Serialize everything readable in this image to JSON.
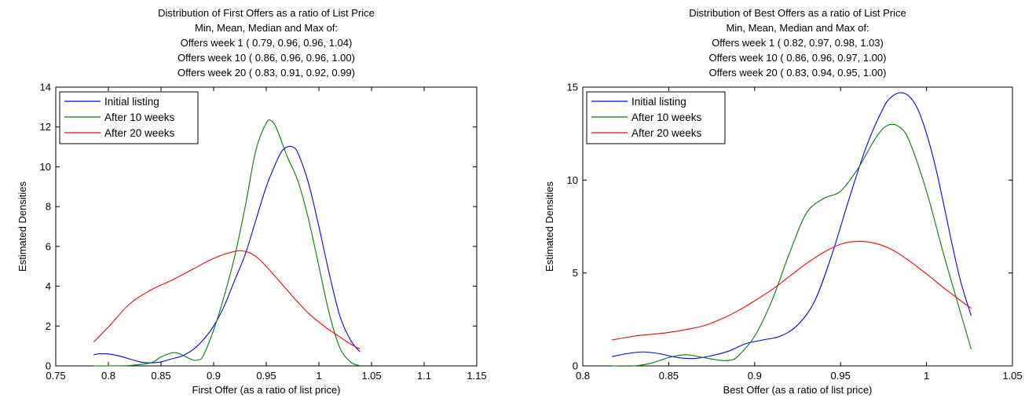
{
  "chart_data": [
    {
      "type": "line",
      "title_lines": [
        "Distribution of First Offers as a ratio of List Price",
        "Min, Mean, Median and Max of:",
        "Offers week 1 ( 0.79, 0.96, 0.96, 1.04)",
        "Offers week 10 ( 0.86, 0.96, 0.96, 1.00)",
        "Offers week 20 ( 0.83, 0.91, 0.92, 0.99)"
      ],
      "xlabel": "First Offer (as a ratio of list price)",
      "ylabel": "Estimated Densities",
      "xlim": [
        0.75,
        1.15
      ],
      "ylim": [
        0,
        14
      ],
      "xticks": [
        0.75,
        0.8,
        0.85,
        0.9,
        0.95,
        1.0,
        1.05,
        1.1,
        1.15
      ],
      "xtick_labels": [
        "0.75",
        "0.8",
        "0.85",
        "0.9",
        "0.95",
        "1",
        "1.05",
        "1.1",
        "1.15"
      ],
      "yticks": [
        0,
        2,
        4,
        6,
        8,
        10,
        12,
        14
      ],
      "ytick_labels": [
        "0",
        "2",
        "4",
        "6",
        "8",
        "10",
        "12",
        "14"
      ],
      "legend_position": "top-left",
      "grid": false,
      "series": [
        {
          "name": "Initial listing",
          "color": "#0000ff",
          "x": [
            0.786,
            0.79,
            0.8,
            0.81,
            0.82,
            0.83,
            0.84,
            0.85,
            0.86,
            0.87,
            0.88,
            0.89,
            0.9,
            0.91,
            0.92,
            0.93,
            0.94,
            0.95,
            0.96,
            0.965,
            0.97,
            0.975,
            0.98,
            0.99,
            1.0,
            1.01,
            1.02,
            1.03,
            1.039
          ],
          "y": [
            0.55,
            0.6,
            0.6,
            0.5,
            0.35,
            0.2,
            0.15,
            0.2,
            0.35,
            0.5,
            0.8,
            1.3,
            2.0,
            3.0,
            4.3,
            5.6,
            7.3,
            9.0,
            10.3,
            10.8,
            11.0,
            11.0,
            10.7,
            9.2,
            7.0,
            4.6,
            2.5,
            1.3,
            0.7
          ]
        },
        {
          "name": "After 10 weeks",
          "color": "#008000",
          "x": [
            0.786,
            0.8,
            0.82,
            0.84,
            0.85,
            0.86,
            0.865,
            0.87,
            0.88,
            0.885,
            0.89,
            0.9,
            0.91,
            0.92,
            0.93,
            0.94,
            0.95,
            0.955,
            0.96,
            0.97,
            0.98,
            0.99,
            1.0,
            1.01,
            1.02,
            1.03,
            1.038
          ],
          "y": [
            0.0,
            0.0,
            0.02,
            0.15,
            0.45,
            0.65,
            0.65,
            0.55,
            0.3,
            0.3,
            0.5,
            1.8,
            3.5,
            5.5,
            8.0,
            10.8,
            12.2,
            12.3,
            11.9,
            10.5,
            9.3,
            7.4,
            5.0,
            2.6,
            0.9,
            0.2,
            0.02
          ]
        },
        {
          "name": "After 20 weeks",
          "color": "#ff0000",
          "x": [
            0.786,
            0.8,
            0.82,
            0.84,
            0.86,
            0.88,
            0.9,
            0.92,
            0.93,
            0.94,
            0.95,
            0.96,
            0.97,
            0.98,
            0.99,
            1.0,
            1.01,
            1.02,
            1.03,
            1.039
          ],
          "y": [
            1.2,
            1.95,
            3.1,
            3.8,
            4.3,
            4.85,
            5.4,
            5.75,
            5.75,
            5.5,
            5.0,
            4.4,
            3.8,
            3.2,
            2.65,
            2.2,
            1.8,
            1.45,
            1.1,
            0.85
          ]
        }
      ]
    },
    {
      "type": "line",
      "title_lines": [
        "Distribution of Best Offers as a ratio of List Price",
        "Min, Mean, Median and Max of:",
        "Offers week 1 ( 0.82, 0.97, 0.98, 1.03)",
        "Offers week 10 ( 0.86, 0.96, 0.97, 1.00)",
        "Offers week 20 ( 0.83, 0.94, 0.95, 1.00)"
      ],
      "xlabel": "Best Offer (as a ratio of list price)",
      "ylabel": "Estimated Densities",
      "xlim": [
        0.8,
        1.05
      ],
      "ylim": [
        0,
        15
      ],
      "xticks": [
        0.8,
        0.85,
        0.9,
        0.95,
        1.0,
        1.05
      ],
      "xtick_labels": [
        "0.8",
        "0.85",
        "0.9",
        "0.95",
        "1",
        "1.05"
      ],
      "yticks": [
        0,
        5,
        10,
        15
      ],
      "ytick_labels": [
        "0",
        "5",
        "10",
        "15"
      ],
      "legend_position": "top-left",
      "grid": false,
      "series": [
        {
          "name": "Initial listing",
          "color": "#0000ff",
          "x": [
            0.817,
            0.825,
            0.835,
            0.845,
            0.855,
            0.865,
            0.875,
            0.885,
            0.895,
            0.905,
            0.915,
            0.925,
            0.935,
            0.945,
            0.955,
            0.965,
            0.975,
            0.98,
            0.985,
            0.99,
            0.995,
            1.0,
            1.005,
            1.01,
            1.015,
            1.02,
            1.026
          ],
          "y": [
            0.5,
            0.65,
            0.75,
            0.65,
            0.45,
            0.4,
            0.55,
            0.8,
            1.2,
            1.4,
            1.6,
            2.2,
            3.5,
            6.0,
            9.0,
            11.8,
            13.9,
            14.5,
            14.7,
            14.5,
            13.8,
            12.5,
            10.8,
            8.7,
            6.5,
            4.5,
            2.7
          ]
        },
        {
          "name": "After 10 weeks",
          "color": "#008000",
          "x": [
            0.817,
            0.83,
            0.84,
            0.85,
            0.86,
            0.87,
            0.88,
            0.885,
            0.89,
            0.9,
            0.91,
            0.92,
            0.93,
            0.94,
            0.95,
            0.96,
            0.965,
            0.97,
            0.975,
            0.98,
            0.985,
            0.99,
            1.0,
            1.01,
            1.02,
            1.026
          ],
          "y": [
            0.0,
            0.0,
            0.15,
            0.45,
            0.6,
            0.45,
            0.3,
            0.3,
            0.5,
            1.6,
            3.5,
            6.0,
            8.2,
            9.0,
            9.4,
            10.6,
            11.4,
            12.2,
            12.8,
            13.0,
            12.8,
            12.1,
            9.4,
            6.0,
            2.8,
            0.9
          ]
        },
        {
          "name": "After 20 weeks",
          "color": "#ff0000",
          "x": [
            0.817,
            0.83,
            0.84,
            0.85,
            0.86,
            0.87,
            0.88,
            0.89,
            0.9,
            0.91,
            0.92,
            0.93,
            0.94,
            0.95,
            0.96,
            0.97,
            0.98,
            0.99,
            1.0,
            1.01,
            1.02,
            1.026
          ],
          "y": [
            1.4,
            1.6,
            1.7,
            1.8,
            1.95,
            2.15,
            2.5,
            2.95,
            3.5,
            4.1,
            4.8,
            5.5,
            6.1,
            6.55,
            6.7,
            6.6,
            6.25,
            5.65,
            4.95,
            4.2,
            3.5,
            3.1
          ]
        }
      ]
    }
  ]
}
